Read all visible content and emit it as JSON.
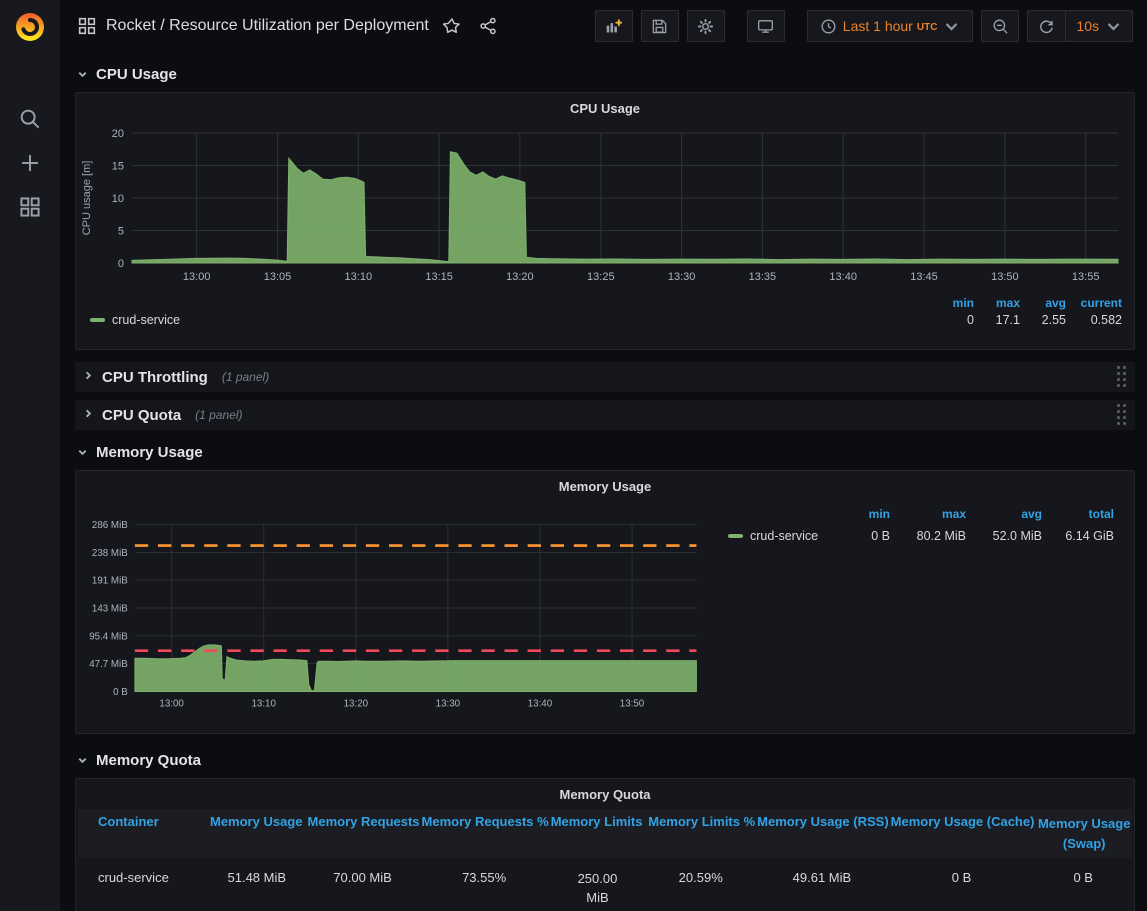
{
  "navbar": {
    "title": "Rocket / Resource Utilization per Deployment",
    "time_label": "Last 1 hour",
    "time_zone": "UTC",
    "refresh_interval": "10s"
  },
  "sections": {
    "cpu_usage": {
      "label": "CPU Usage"
    },
    "cpu_throttling": {
      "label": "CPU Throttling",
      "count": "(1 panel)"
    },
    "cpu_quota": {
      "label": "CPU Quota",
      "count": "(1 panel)"
    },
    "memory_usage": {
      "label": "Memory Usage"
    },
    "memory_quota": {
      "label": "Memory Quota"
    }
  },
  "cpu_panel": {
    "title": "CPU Usage",
    "legend": {
      "cols": [
        "min",
        "max",
        "avg",
        "current"
      ],
      "series": [
        {
          "name": "crud-service",
          "stats": [
            "0",
            "17.1",
            "2.55",
            "0.582"
          ]
        }
      ]
    }
  },
  "memory_panel": {
    "title": "Memory Usage",
    "legend": {
      "cols": [
        "min",
        "max",
        "avg",
        "total"
      ],
      "series": [
        {
          "name": "crud-service",
          "stats": [
            "0 B",
            "80.2 MiB",
            "52.0 MiB",
            "6.14 GiB"
          ]
        }
      ]
    }
  },
  "quota_panel": {
    "title": "Memory Quota",
    "headers": [
      "Container",
      "Memory Usage",
      "Memory Requests",
      "Memory Requests %",
      "Memory Limits",
      "Memory Limits %",
      "Memory Usage (RSS)",
      "Memory Usage (Cache)",
      "Memory Usage (Swap)"
    ],
    "rows": [
      [
        "crud-service",
        "51.48 MiB",
        "70.00 MiB",
        "73.55%",
        "250.00 MiB",
        "20.59%",
        "49.61 MiB",
        "0 B",
        "0 B"
      ]
    ]
  },
  "chart_data": [
    {
      "type": "area",
      "title": "CPU Usage",
      "ylabel": "CPU usage [m]",
      "x_unit": "minutes from 12:56",
      "xlim": [
        0,
        61
      ],
      "ylim": [
        0,
        20
      ],
      "grid": true,
      "xticks": [
        {
          "v": 4,
          "label": "13:00"
        },
        {
          "v": 9,
          "label": "13:05"
        },
        {
          "v": 14,
          "label": "13:10"
        },
        {
          "v": 19,
          "label": "13:15"
        },
        {
          "v": 24,
          "label": "13:20"
        },
        {
          "v": 29,
          "label": "13:25"
        },
        {
          "v": 34,
          "label": "13:30"
        },
        {
          "v": 39,
          "label": "13:35"
        },
        {
          "v": 44,
          "label": "13:40"
        },
        {
          "v": 49,
          "label": "13:45"
        },
        {
          "v": 54,
          "label": "13:50"
        },
        {
          "v": 59,
          "label": "13:55"
        }
      ],
      "yticks": [
        {
          "v": 0,
          "label": "0"
        },
        {
          "v": 5,
          "label": "5"
        },
        {
          "v": 10,
          "label": "10"
        },
        {
          "v": 15,
          "label": "15"
        },
        {
          "v": 20,
          "label": "20"
        }
      ],
      "series": [
        {
          "name": "crud-service",
          "color": "#7eb26d",
          "fill_opacity": 0.9,
          "points": [
            [
              0,
              0.4
            ],
            [
              2,
              0.55
            ],
            [
              4,
              0.7
            ],
            [
              6,
              0.75
            ],
            [
              7,
              0.7
            ],
            [
              8,
              0.6
            ],
            [
              9,
              0.45
            ],
            [
              9.5,
              0.3
            ],
            [
              9.6,
              0.2
            ],
            [
              9.7,
              16.1
            ],
            [
              10.2,
              14.6
            ],
            [
              10.6,
              13.8
            ],
            [
              11.0,
              14.3
            ],
            [
              11.4,
              13.7
            ],
            [
              11.8,
              12.9
            ],
            [
              12.3,
              12.8
            ],
            [
              12.8,
              13.1
            ],
            [
              13.3,
              13.2
            ],
            [
              13.8,
              13.0
            ],
            [
              14.2,
              12.6
            ],
            [
              14.35,
              12.4
            ],
            [
              14.45,
              1.0
            ],
            [
              15.5,
              0.9
            ],
            [
              16.5,
              0.8
            ],
            [
              17.5,
              0.65
            ],
            [
              18.5,
              0.5
            ],
            [
              19.3,
              0.3
            ],
            [
              19.6,
              0.2
            ],
            [
              19.7,
              17.1
            ],
            [
              20.1,
              16.9
            ],
            [
              20.5,
              15.3
            ],
            [
              20.9,
              14.0
            ],
            [
              21.3,
              13.5
            ],
            [
              21.7,
              14.0
            ],
            [
              22.1,
              13.3
            ],
            [
              22.5,
              12.9
            ],
            [
              22.9,
              13.4
            ],
            [
              23.3,
              13.1
            ],
            [
              23.8,
              12.8
            ],
            [
              24.3,
              12.4
            ],
            [
              24.4,
              0.9
            ],
            [
              25,
              0.7
            ],
            [
              26,
              0.65
            ],
            [
              28,
              0.6
            ],
            [
              30,
              0.62
            ],
            [
              32,
              0.55
            ],
            [
              34,
              0.6
            ],
            [
              36,
              0.58
            ],
            [
              38,
              0.62
            ],
            [
              40,
              0.52
            ],
            [
              42,
              0.6
            ],
            [
              44,
              0.56
            ],
            [
              46,
              0.62
            ],
            [
              48,
              0.52
            ],
            [
              50,
              0.6
            ],
            [
              52,
              0.55
            ],
            [
              54,
              0.6
            ],
            [
              56,
              0.55
            ],
            [
              58,
              0.6
            ],
            [
              61,
              0.58
            ]
          ]
        }
      ]
    },
    {
      "type": "area",
      "title": "Memory Usage",
      "y_unit": "MiB",
      "x_unit": "minutes from 12:56",
      "xlim": [
        0,
        61
      ],
      "ylim": [
        0,
        286
      ],
      "grid": true,
      "xticks": [
        {
          "v": 4,
          "label": "13:00"
        },
        {
          "v": 14,
          "label": "13:10"
        },
        {
          "v": 24,
          "label": "13:20"
        },
        {
          "v": 34,
          "label": "13:30"
        },
        {
          "v": 44,
          "label": "13:40"
        },
        {
          "v": 54,
          "label": "13:50"
        }
      ],
      "yticks": [
        {
          "v": 0,
          "label": "0 B"
        },
        {
          "v": 47.7,
          "label": "47.7 MiB"
        },
        {
          "v": 95.4,
          "label": "95.4 MiB"
        },
        {
          "v": 143,
          "label": "143 MiB"
        },
        {
          "v": 191,
          "label": "191 MiB"
        },
        {
          "v": 238,
          "label": "238 MiB"
        },
        {
          "v": 286,
          "label": "286 MiB"
        }
      ],
      "thresholds": [
        {
          "y": 250,
          "color": "#ff9830",
          "name": "memory limit 250 MiB"
        },
        {
          "y": 70,
          "color": "#f2495c",
          "name": "memory request 70 MiB"
        }
      ],
      "series": [
        {
          "name": "crud-service",
          "color": "#7eb26d",
          "fill_opacity": 0.9,
          "points": [
            [
              0,
              57
            ],
            [
              1,
              57
            ],
            [
              2,
              56.5
            ],
            [
              3,
              56
            ],
            [
              4,
              56.5
            ],
            [
              5,
              57
            ],
            [
              5.5,
              58
            ],
            [
              6,
              62
            ],
            [
              6.5,
              68
            ],
            [
              7,
              74
            ],
            [
              7.5,
              78
            ],
            [
              8,
              80
            ],
            [
              8.6,
              80
            ],
            [
              9.2,
              79
            ],
            [
              9.4,
              78
            ],
            [
              9.5,
              22
            ],
            [
              9.8,
              19
            ],
            [
              10.0,
              60
            ],
            [
              10.2,
              58
            ],
            [
              10.6,
              56
            ],
            [
              11,
              54
            ],
            [
              12,
              52.5
            ],
            [
              13,
              52
            ],
            [
              14,
              52.5
            ],
            [
              14.5,
              54
            ],
            [
              15,
              55
            ],
            [
              16,
              55
            ],
            [
              17,
              54.5
            ],
            [
              18,
              54
            ],
            [
              18.7,
              53
            ],
            [
              18.9,
              12
            ],
            [
              19.2,
              1
            ],
            [
              19.5,
              2
            ],
            [
              19.8,
              50
            ],
            [
              20,
              52
            ],
            [
              21,
              52
            ],
            [
              22,
              51.5
            ],
            [
              23,
              52
            ],
            [
              24,
              52.5
            ],
            [
              25,
              52
            ],
            [
              27,
              52
            ],
            [
              29,
              52.5
            ],
            [
              31,
              52
            ],
            [
              33,
              52.5
            ],
            [
              35,
              53
            ],
            [
              38,
              53
            ],
            [
              41,
              53
            ],
            [
              44,
              53
            ],
            [
              47,
              53
            ],
            [
              50,
              53
            ],
            [
              53,
              53
            ],
            [
              56,
              53
            ],
            [
              59,
              53
            ],
            [
              61,
              53
            ]
          ]
        }
      ]
    }
  ]
}
